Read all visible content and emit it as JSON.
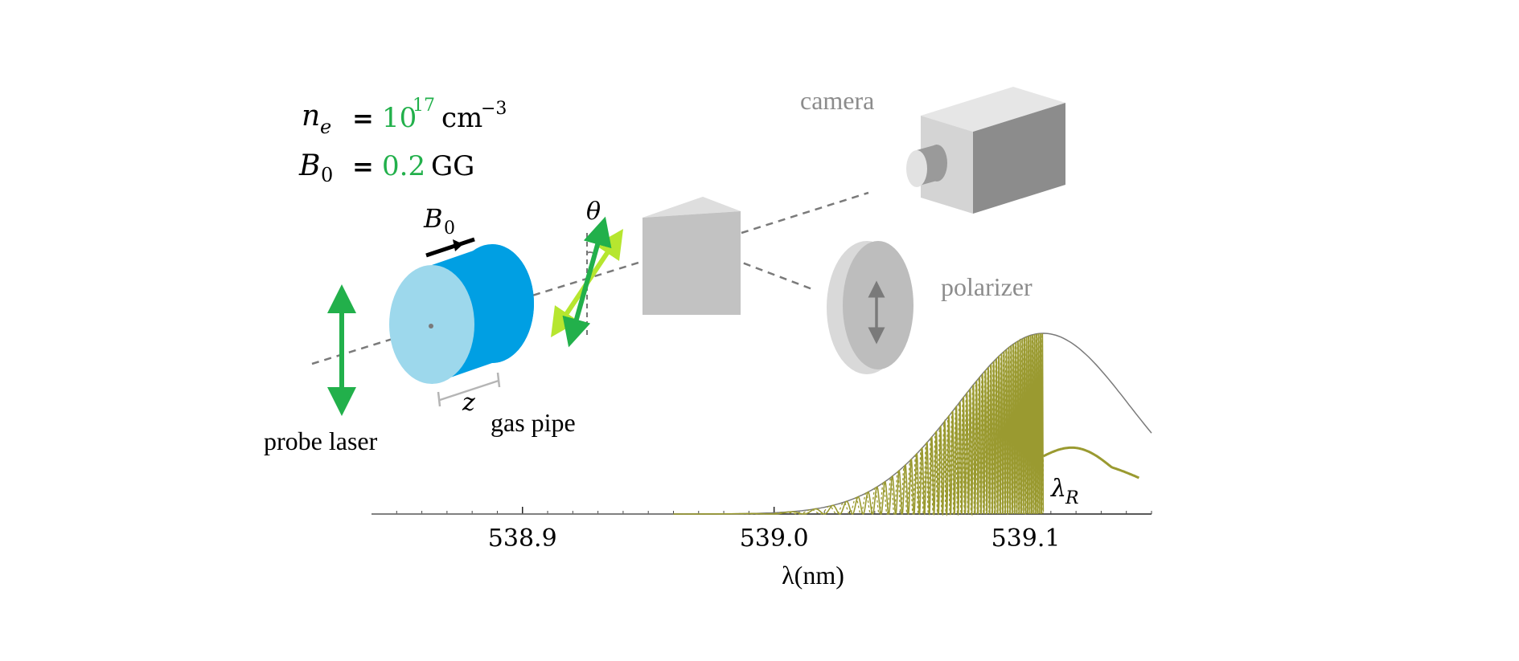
{
  "parameters": {
    "ne": {
      "symbol": "n",
      "sub": "e",
      "eq": "=",
      "base": "10",
      "exp": "17",
      "unit": "cm",
      "unit_exp": "−3"
    },
    "b0": {
      "symbol": "B",
      "sub": "0",
      "eq": "=",
      "value": "0.2",
      "unit": "GG"
    }
  },
  "labels": {
    "camera": "camera",
    "polarizer": "polarizer",
    "probe_laser": "probe laser",
    "gas_pipe": "gas pipe",
    "b0_symbol": "B",
    "b0_sub": "0",
    "theta": "θ",
    "z": "z",
    "lambda_r_symbol": "λ",
    "lambda_r_sub": "R",
    "x_axis": "λ(nm)"
  },
  "colors": {
    "probe_green": "#22b04b",
    "light_green": "#b6e62f",
    "probe_label": "#33ff33",
    "gas_pipe_label": "#1a1aff",
    "pipe_face": "#9dd8ec",
    "pipe_body": "#009fe3",
    "gray_device": "#c8c8c8",
    "signal": "#9a9a30",
    "envelope": "#7a7a7a"
  },
  "chart_data": {
    "type": "line",
    "xlabel": "λ(nm)",
    "xlim": [
      538.84,
      539.15
    ],
    "x_ticks": [
      538.9,
      539.0,
      539.1
    ],
    "x_tick_labels": [
      "538.9",
      "539.0",
      "539.1"
    ],
    "cutoff_x": 539.107,
    "annotation": "λR",
    "series": [
      {
        "type": "envelope",
        "peak_x": 539.107,
        "peak_rel": 1.0,
        "width_nm": 0.048
      },
      {
        "type": "oscillating",
        "x_start": 538.96,
        "x_end": 539.107
      },
      {
        "type": "tail",
        "x_start": 539.107,
        "x_end": 539.145
      }
    ]
  }
}
